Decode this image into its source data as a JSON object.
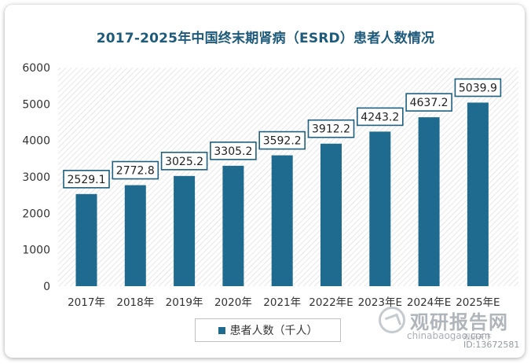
{
  "chart_data": {
    "type": "bar",
    "title": "2017-2025年中国终末期肾病（ESRD）患者人数情况",
    "categories": [
      "2017年",
      "2018年",
      "2019年",
      "2020年",
      "2021年",
      "2022年E",
      "2023年E",
      "2024年E",
      "2025年E"
    ],
    "series": [
      {
        "name": "患者人数（千人）",
        "values": [
          2529.1,
          2772.8,
          3025.2,
          3305.2,
          3592.2,
          3912.2,
          4243.2,
          4637.2,
          5039.9
        ],
        "labels": [
          "2529.1",
          "2772.8",
          "3025.2",
          "3305.2",
          "3592.2",
          "3912.2",
          "4243.2",
          "4637.2",
          "5039.9"
        ]
      }
    ],
    "ylim": [
      0,
      6000
    ],
    "yticks": [
      0,
      1000,
      2000,
      3000,
      4000,
      5000,
      6000
    ],
    "ytick_labels": [
      "0",
      "1000",
      "2000",
      "3000",
      "4000",
      "5000",
      "6000"
    ],
    "legend_position": "bottom",
    "colors": {
      "bar": "#1f6b8f",
      "label_border": "#1f5f7f",
      "title": "#1e5a7a"
    }
  },
  "watermark": {
    "name": "观研报告网",
    "domain": "chinabaogao.com",
    "sub": "观研天下",
    "id": "ID:13672581"
  }
}
